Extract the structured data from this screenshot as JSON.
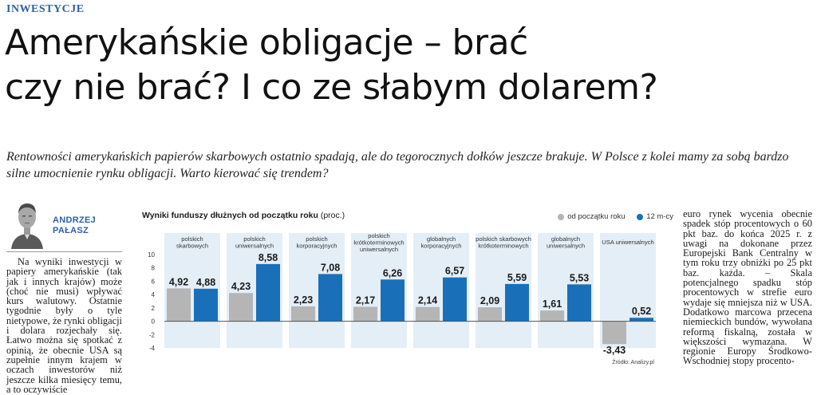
{
  "section": "INWESTYCJE",
  "headline": {
    "line1": "Amerykańskie obligacje – brać",
    "line2": "czy nie brać? I co ze słabym dolarem?"
  },
  "lead": "Rentowności amerykańskich papierów skarbowych ostatnio spadają, ale do tegorocznych dołków jeszcze brakuje. W Polsce z kolei mamy za sobą bardzo silne umocnienie rynku obligacji. Warto kierować się trendem?",
  "author": {
    "first_name": "ANDRZEJ",
    "last_name": "PAŁASZ"
  },
  "left_column": "Na wyniki inwestycji w papiery amerykańskie (tak jak i innych krajów) może (choć nie musi) wpływać kurs walutowy. Ostatnie tygodnie były o tyle nietypowe, że rynki obligacji i dolara rozjechały się. Łatwo można się spotkać z opinią, że obecnie USA są zupełnie innym krajem w oczach inwestorów niż jeszcze kilka miesięcy temu, a to oczywiście",
  "right_column": "euro rynek wycenia obecnie spadek stóp procentowych o 60 pkt baz. do końca 2025 r. z uwagi na dokonane przez Europejski Bank Centralny w tym roku trzy obniżki po 25 pkt baz. każda. – Skala potencjalnego spadku stóp procentowych w strefie euro wydaje się mniejsza niż w USA. Dodatkowo marcowa przecena niemieckich bundów, wywołana reformą fiskalną, została w większości wymazana. W regionie Europy Środkowo-Wschodniej stopy procento-",
  "chart_data": {
    "type": "bar",
    "title_bold": "Wyniki funduszy dłużnych od początku roku",
    "title_unit": "(proc.)",
    "categories": [
      [
        "polskich",
        "skarbowych"
      ],
      [
        "polskich",
        "uniwersalnych"
      ],
      [
        "polskich",
        "korporacyjnych"
      ],
      [
        "polskich",
        "krótkoterminowych",
        "uniwersalnych"
      ],
      [
        "globalnych",
        "korporacyjnych"
      ],
      [
        "polskich skarbowych",
        "krótkoterminowych"
      ],
      [
        "globalnych",
        "uniwersalnych"
      ],
      [
        "USA uniwersalnych"
      ]
    ],
    "series": [
      {
        "name": "od początku roku",
        "color": "#b5b5b5",
        "values": [
          4.92,
          4.23,
          2.23,
          2.17,
          2.14,
          2.09,
          1.61,
          -3.43
        ]
      },
      {
        "name": "12 m-cy",
        "color": "#1a70b8",
        "values": [
          4.88,
          8.58,
          7.08,
          6.26,
          6.57,
          5.59,
          5.53,
          0.52
        ]
      }
    ],
    "value_labels": [
      [
        "4,92",
        "4,23",
        "2,23",
        "2,17",
        "2,14",
        "2,09",
        "1,61",
        "-3,43"
      ],
      [
        "4,88",
        "8,58",
        "7,08",
        "6,26",
        "6,57",
        "5,59",
        "5,53",
        "0,52"
      ]
    ],
    "yticks": [
      -4,
      -2,
      0,
      2,
      4,
      6,
      8,
      10
    ],
    "ylim": [
      -4,
      10
    ],
    "category_background": "#e4eef7",
    "source": "Źródło: Analizy.pl",
    "grid": false,
    "legend": "top-right"
  }
}
